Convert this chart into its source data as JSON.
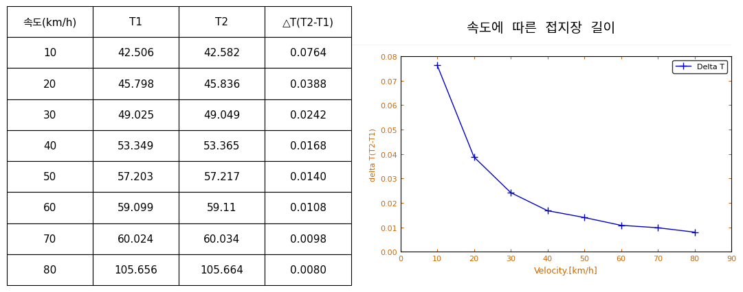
{
  "table": {
    "headers": [
      "속도(km/h)",
      "T1",
      "T2",
      "△T(T2-T1)"
    ],
    "rows": [
      [
        10,
        42.506,
        42.582,
        "0.0764"
      ],
      [
        20,
        45.798,
        45.836,
        "0.0388"
      ],
      [
        30,
        49.025,
        49.049,
        "0.0242"
      ],
      [
        40,
        53.349,
        53.365,
        "0.0168"
      ],
      [
        50,
        57.203,
        57.217,
        "0.0140"
      ],
      [
        60,
        59.099,
        59.11,
        "0.0108"
      ],
      [
        70,
        60.024,
        60.034,
        "0.0098"
      ],
      [
        80,
        105.656,
        105.664,
        "0.0080"
      ]
    ]
  },
  "chart": {
    "title": "속도에  따른  접지장  길이",
    "xlabel": "Velocity.[km/h]",
    "ylabel": "delta T(T2-T1)",
    "legend_label": "Delta T",
    "x": [
      10,
      20,
      30,
      40,
      50,
      60,
      70,
      80
    ],
    "y": [
      0.0764,
      0.0388,
      0.0242,
      0.0168,
      0.014,
      0.0108,
      0.0098,
      0.008
    ],
    "xlim": [
      0,
      90
    ],
    "ylim": [
      0,
      0.08
    ],
    "xticks": [
      0,
      10,
      20,
      30,
      40,
      50,
      60,
      70,
      80,
      90
    ],
    "yticks": [
      0,
      0.01,
      0.02,
      0.03,
      0.04,
      0.05,
      0.06,
      0.07,
      0.08
    ],
    "line_color": "#0000CC",
    "marker": "+",
    "title_color": "#000000",
    "xlabel_color": "#CC6600",
    "ylabel_color": "#CC6600",
    "tick_color_x": "#CC6600",
    "tick_color_y": "#CC6600"
  },
  "bg_color": "#ffffff",
  "table_font_size": 11,
  "header_font_size": 11,
  "border_color": "#000000"
}
